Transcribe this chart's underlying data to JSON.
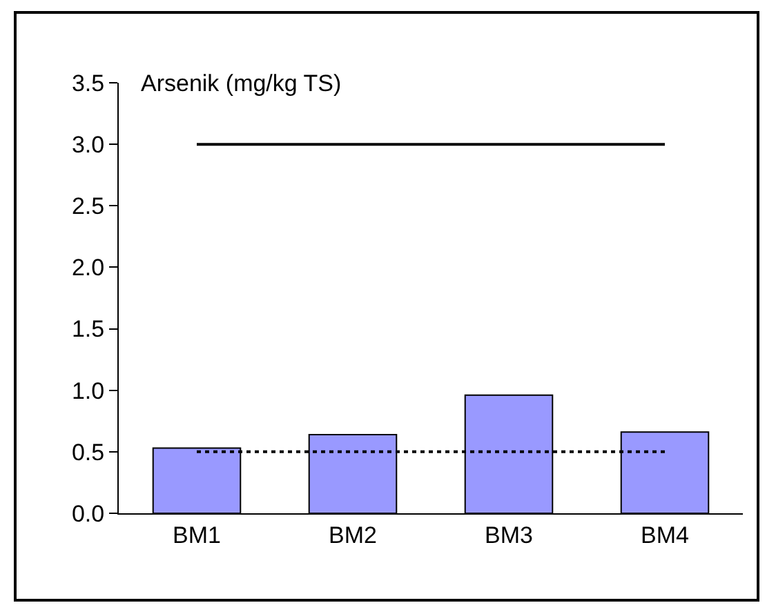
{
  "chart_data": {
    "type": "bar",
    "title": "Arsenik (mg/kg TS)",
    "categories": [
      "BM1",
      "BM2",
      "BM3",
      "BM4"
    ],
    "series": [
      {
        "color": "#9999ff",
        "values": [
          0.53,
          0.64,
          0.96,
          0.66
        ]
      },
      {
        "type": "line",
        "color": "#000000",
        "line_style": "solid",
        "values": [
          3.0,
          3.0,
          3.0,
          3.0
        ]
      },
      {
        "type": "line",
        "color": "#000000",
        "line_style": "dotted",
        "values": [
          0.5,
          0.5,
          0.5,
          0.5
        ]
      }
    ],
    "ylim": [
      0,
      3.5
    ],
    "yticks": [
      {
        "value": 0,
        "label": "0.0"
      },
      {
        "value": 0.5,
        "label": "0.5"
      },
      {
        "value": 1,
        "label": "1.0"
      },
      {
        "value": 1.5,
        "label": "1.5"
      },
      {
        "value": 2,
        "label": "2.0"
      },
      {
        "value": 2.5,
        "label": "2.5"
      },
      {
        "value": 3,
        "label": "3.0"
      },
      {
        "value": 3.5,
        "label": "3.5"
      }
    ],
    "grid": false,
    "marker": "none"
  }
}
